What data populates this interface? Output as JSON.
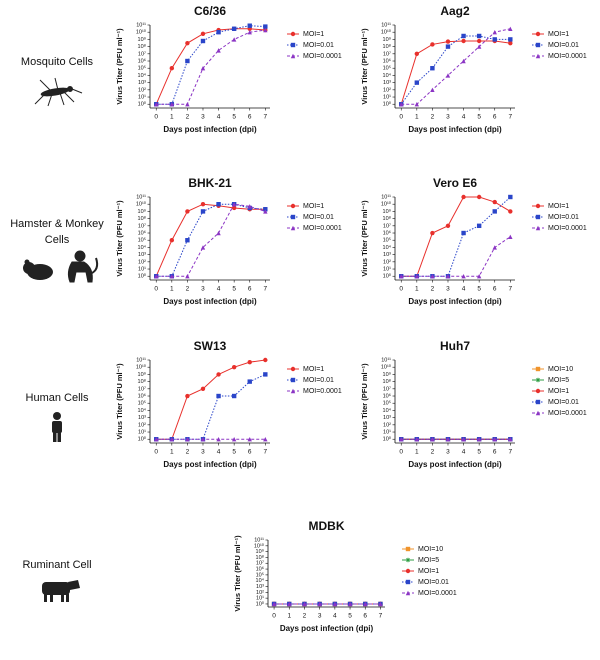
{
  "row_labels": [
    "Mosquito Cells",
    "Hamster & Monkey Cells",
    "Human Cells",
    "Ruminant Cell"
  ],
  "chart_data": [
    {
      "type": "line",
      "title": "C6/36",
      "xlabel": "Days post infection (dpi)",
      "ylabel": "Virus Titer (PFU ml⁻¹)",
      "log_scale": "y",
      "grid": false,
      "x": [
        0,
        1,
        2,
        3,
        4,
        5,
        6,
        7
      ],
      "xlim": [
        -0.4,
        7.3
      ],
      "xticks": [
        0,
        1,
        2,
        3,
        4,
        5,
        6,
        7
      ],
      "ylim": [
        0.3,
        100000000000.0
      ],
      "yticks": [
        {
          "value": 1,
          "label": "10⁰"
        },
        {
          "value": 10,
          "label": "10¹"
        },
        {
          "value": 100,
          "label": "10²"
        },
        {
          "value": 1000,
          "label": "10³"
        },
        {
          "value": 10000.0,
          "label": "10⁴"
        },
        {
          "value": 100000.0,
          "label": "10⁵"
        },
        {
          "value": 1000000.0,
          "label": "10⁶"
        },
        {
          "value": 10000000.0,
          "label": "10⁷"
        },
        {
          "value": 100000000.0,
          "label": "10⁸"
        },
        {
          "value": 1000000000.0,
          "label": "10⁹"
        },
        {
          "value": 10000000000.0,
          "label": "10¹⁰"
        },
        {
          "value": 100000000000.0,
          "label": "10¹¹"
        }
      ],
      "series": [
        {
          "name": "MOI=1",
          "color": "#e8302c",
          "marker": "circle",
          "dash": "solid",
          "values": [
            1,
            100000.0,
            300000000.0,
            6000000000.0,
            20000000000.0,
            30000000000.0,
            30000000000.0,
            20000000000.0
          ]
        },
        {
          "name": "MOI=0.01",
          "color": "#2a45c9",
          "marker": "square",
          "dash": "dotted",
          "values": [
            1,
            1,
            1000000.0,
            600000000.0,
            10000000000.0,
            30000000000.0,
            80000000000.0,
            60000000000.0
          ]
        },
        {
          "name": "MOI=0.0001",
          "color": "#8b34c4",
          "marker": "triangle",
          "dash": "dashed",
          "values": [
            1,
            1,
            1,
            100000.0,
            30000000.0,
            1000000000.0,
            10000000000.0,
            20000000000.0
          ]
        }
      ]
    },
    {
      "type": "line",
      "title": "Aag2",
      "xlabel": "Days post infection (dpi)",
      "ylabel": "Virus Titer (PFU ml⁻¹)",
      "log_scale": "y",
      "grid": false,
      "x": [
        0,
        1,
        2,
        3,
        4,
        5,
        6,
        7
      ],
      "xlim": [
        -0.4,
        7.3
      ],
      "xticks": [
        0,
        1,
        2,
        3,
        4,
        5,
        6,
        7
      ],
      "ylim": [
        0.3,
        100000000000.0
      ],
      "yticks": [
        {
          "value": 1,
          "label": "10⁰"
        },
        {
          "value": 10,
          "label": "10¹"
        },
        {
          "value": 100,
          "label": "10²"
        },
        {
          "value": 1000,
          "label": "10³"
        },
        {
          "value": 10000.0,
          "label": "10⁴"
        },
        {
          "value": 100000.0,
          "label": "10⁵"
        },
        {
          "value": 1000000.0,
          "label": "10⁶"
        },
        {
          "value": 10000000.0,
          "label": "10⁷"
        },
        {
          "value": 100000000.0,
          "label": "10⁸"
        },
        {
          "value": 1000000000.0,
          "label": "10⁹"
        },
        {
          "value": 10000000000.0,
          "label": "10¹⁰"
        },
        {
          "value": 100000000000.0,
          "label": "10¹¹"
        }
      ],
      "series": [
        {
          "name": "MOI=1",
          "color": "#e8302c",
          "marker": "circle",
          "dash": "solid",
          "values": [
            1,
            10000000.0,
            200000000.0,
            500000000.0,
            600000000.0,
            600000000.0,
            600000000.0,
            300000000.0
          ]
        },
        {
          "name": "MOI=0.01",
          "color": "#2a45c9",
          "marker": "square",
          "dash": "dotted",
          "values": [
            1,
            1000,
            100000.0,
            100000000.0,
            3000000000.0,
            3000000000.0,
            1000000000.0,
            1000000000.0
          ]
        },
        {
          "name": "MOI=0.0001",
          "color": "#8b34c4",
          "marker": "triangle",
          "dash": "dashed",
          "values": [
            1,
            1,
            100,
            10000.0,
            1000000.0,
            100000000.0,
            10000000000.0,
            30000000000.0
          ]
        }
      ]
    },
    {
      "type": "line",
      "title": "BHK-21",
      "xlabel": "Days post infection (dpi)",
      "ylabel": "Virus Titer (PFU ml⁻¹)",
      "log_scale": "y",
      "grid": false,
      "x": [
        0,
        1,
        2,
        3,
        4,
        5,
        6,
        7
      ],
      "xlim": [
        -0.4,
        7.3
      ],
      "xticks": [
        0,
        1,
        2,
        3,
        4,
        5,
        6,
        7
      ],
      "ylim": [
        0.3,
        100000000000.0
      ],
      "yticks": [
        {
          "value": 1,
          "label": "10⁰"
        },
        {
          "value": 10,
          "label": "10¹"
        },
        {
          "value": 100,
          "label": "10²"
        },
        {
          "value": 1000,
          "label": "10³"
        },
        {
          "value": 10000.0,
          "label": "10⁴"
        },
        {
          "value": 100000.0,
          "label": "10⁵"
        },
        {
          "value": 1000000.0,
          "label": "10⁶"
        },
        {
          "value": 10000000.0,
          "label": "10⁷"
        },
        {
          "value": 100000000.0,
          "label": "10⁸"
        },
        {
          "value": 1000000000.0,
          "label": "10⁹"
        },
        {
          "value": 10000000000.0,
          "label": "10¹⁰"
        },
        {
          "value": 100000000000.0,
          "label": "10¹¹"
        }
      ],
      "series": [
        {
          "name": "MOI=1",
          "color": "#e8302c",
          "marker": "circle",
          "dash": "solid",
          "values": [
            1,
            100000.0,
            1000000000.0,
            10000000000.0,
            6000000000.0,
            3000000000.0,
            2000000000.0,
            2000000000.0
          ]
        },
        {
          "name": "MOI=0.01",
          "color": "#2a45c9",
          "marker": "square",
          "dash": "dotted",
          "values": [
            1,
            1,
            100000.0,
            1000000000.0,
            10000000000.0,
            10000000000.0,
            3000000000.0,
            2000000000.0
          ]
        },
        {
          "name": "MOI=0.0001",
          "color": "#8b34c4",
          "marker": "triangle",
          "dash": "dashed",
          "values": [
            1,
            1,
            1,
            10000.0,
            1000000.0,
            10000000000.0,
            5000000000.0,
            1000000000.0
          ]
        }
      ]
    },
    {
      "type": "line",
      "title": "Vero E6",
      "xlabel": "Days post infection (dpi)",
      "ylabel": "Virus Titer (PFU ml⁻¹)",
      "log_scale": "y",
      "grid": false,
      "x": [
        0,
        1,
        2,
        3,
        4,
        5,
        6,
        7
      ],
      "xlim": [
        -0.4,
        7.3
      ],
      "xticks": [
        0,
        1,
        2,
        3,
        4,
        5,
        6,
        7
      ],
      "ylim": [
        0.3,
        100000000000.0
      ],
      "yticks": [
        {
          "value": 1,
          "label": "10⁰"
        },
        {
          "value": 10,
          "label": "10¹"
        },
        {
          "value": 100,
          "label": "10²"
        },
        {
          "value": 1000,
          "label": "10³"
        },
        {
          "value": 10000.0,
          "label": "10⁴"
        },
        {
          "value": 100000.0,
          "label": "10⁵"
        },
        {
          "value": 1000000.0,
          "label": "10⁶"
        },
        {
          "value": 10000000.0,
          "label": "10⁷"
        },
        {
          "value": 100000000.0,
          "label": "10⁸"
        },
        {
          "value": 1000000000.0,
          "label": "10⁹"
        },
        {
          "value": 10000000000.0,
          "label": "10¹⁰"
        },
        {
          "value": 100000000000.0,
          "label": "10¹¹"
        }
      ],
      "series": [
        {
          "name": "MOI=1",
          "color": "#e8302c",
          "marker": "circle",
          "dash": "solid",
          "values": [
            1,
            1,
            1000000.0,
            10000000.0,
            100000000000.0,
            100000000000.0,
            20000000000.0,
            1000000000.0
          ]
        },
        {
          "name": "MOI=0.01",
          "color": "#2a45c9",
          "marker": "square",
          "dash": "dotted",
          "values": [
            1,
            1,
            1,
            1,
            1000000.0,
            10000000.0,
            1000000000.0,
            100000000000.0
          ]
        },
        {
          "name": "MOI=0.0001",
          "color": "#8b34c4",
          "marker": "triangle",
          "dash": "dashed",
          "values": [
            1,
            1,
            1,
            1,
            1,
            1,
            10000.0,
            300000.0
          ]
        }
      ]
    },
    {
      "type": "line",
      "title": "SW13",
      "xlabel": "Days post infection (dpi)",
      "ylabel": "Virus Titer (PFU ml⁻¹)",
      "log_scale": "y",
      "grid": false,
      "x": [
        0,
        1,
        2,
        3,
        4,
        5,
        6,
        7
      ],
      "xlim": [
        -0.4,
        7.3
      ],
      "xticks": [
        0,
        1,
        2,
        3,
        4,
        5,
        6,
        7
      ],
      "ylim": [
        0.3,
        100000000000.0
      ],
      "yticks": [
        {
          "value": 1,
          "label": "10⁰"
        },
        {
          "value": 10,
          "label": "10¹"
        },
        {
          "value": 100,
          "label": "10²"
        },
        {
          "value": 1000,
          "label": "10³"
        },
        {
          "value": 10000.0,
          "label": "10⁴"
        },
        {
          "value": 100000.0,
          "label": "10⁵"
        },
        {
          "value": 1000000.0,
          "label": "10⁶"
        },
        {
          "value": 10000000.0,
          "label": "10⁷"
        },
        {
          "value": 100000000.0,
          "label": "10⁸"
        },
        {
          "value": 1000000000.0,
          "label": "10⁹"
        },
        {
          "value": 10000000000.0,
          "label": "10¹⁰"
        },
        {
          "value": 100000000000.0,
          "label": "10¹¹"
        }
      ],
      "series": [
        {
          "name": "MOI=1",
          "color": "#e8302c",
          "marker": "circle",
          "dash": "solid",
          "values": [
            1,
            1,
            1000000.0,
            10000000.0,
            1000000000.0,
            10000000000.0,
            50000000000.0,
            100000000000.0
          ]
        },
        {
          "name": "MOI=0.01",
          "color": "#2a45c9",
          "marker": "square",
          "dash": "dotted",
          "values": [
            1,
            1,
            1,
            1,
            1000000.0,
            1000000.0,
            100000000.0,
            1000000000.0
          ]
        },
        {
          "name": "MOI=0.0001",
          "color": "#8b34c4",
          "marker": "triangle",
          "dash": "dashed",
          "values": [
            1,
            1,
            1,
            1,
            1,
            1,
            1,
            1
          ]
        }
      ]
    },
    {
      "type": "line",
      "title": "Huh7",
      "xlabel": "Days post infection (dpi)",
      "ylabel": "Virus Titer (PFU ml⁻¹)",
      "log_scale": "y",
      "grid": false,
      "x": [
        0,
        1,
        2,
        3,
        4,
        5,
        6,
        7
      ],
      "xlim": [
        -0.4,
        7.3
      ],
      "xticks": [
        0,
        1,
        2,
        3,
        4,
        5,
        6,
        7
      ],
      "ylim": [
        0.3,
        100000000000.0
      ],
      "yticks": [
        {
          "value": 1,
          "label": "10⁰"
        },
        {
          "value": 10,
          "label": "10¹"
        },
        {
          "value": 100,
          "label": "10²"
        },
        {
          "value": 1000,
          "label": "10³"
        },
        {
          "value": 10000.0,
          "label": "10⁴"
        },
        {
          "value": 100000.0,
          "label": "10⁵"
        },
        {
          "value": 1000000.0,
          "label": "10⁶"
        },
        {
          "value": 10000000.0,
          "label": "10⁷"
        },
        {
          "value": 100000000.0,
          "label": "10⁸"
        },
        {
          "value": 1000000000.0,
          "label": "10⁹"
        },
        {
          "value": 10000000000.0,
          "label": "10¹⁰"
        },
        {
          "value": 100000000000.0,
          "label": "10¹¹"
        }
      ],
      "series": [
        {
          "name": "MOI=10",
          "color": "#f0932b",
          "marker": "square",
          "dash": "solid",
          "values": [
            1,
            1,
            1,
            1,
            1,
            1,
            1,
            1
          ]
        },
        {
          "name": "MOI=5",
          "color": "#2f9e44",
          "marker": "star",
          "dash": "solid",
          "values": [
            1,
            1,
            1,
            1,
            1,
            1,
            1,
            1
          ]
        },
        {
          "name": "MOI=1",
          "color": "#e8302c",
          "marker": "circle",
          "dash": "solid",
          "values": [
            1,
            1,
            1,
            1,
            1,
            1,
            1,
            1
          ]
        },
        {
          "name": "MOI=0.01",
          "color": "#2a45c9",
          "marker": "square",
          "dash": "dotted",
          "values": [
            1,
            1,
            1,
            1,
            1,
            1,
            1,
            1
          ]
        },
        {
          "name": "MOI=0.0001",
          "color": "#8b34c4",
          "marker": "triangle",
          "dash": "dashed",
          "values": [
            1,
            1,
            1,
            1,
            1,
            1,
            1,
            1
          ]
        }
      ]
    },
    {
      "type": "line",
      "title": "MDBK",
      "xlabel": "Days post infection (dpi)",
      "ylabel": "Virus Titer (PFU ml⁻¹)",
      "log_scale": "y",
      "grid": false,
      "x": [
        0,
        1,
        2,
        3,
        4,
        5,
        6,
        7
      ],
      "xlim": [
        -0.4,
        7.3
      ],
      "xticks": [
        0,
        1,
        2,
        3,
        4,
        5,
        6,
        7
      ],
      "ylim": [
        0.3,
        100000000000.0
      ],
      "yticks": [
        {
          "value": 1,
          "label": "10⁰"
        },
        {
          "value": 10,
          "label": "10¹"
        },
        {
          "value": 100,
          "label": "10²"
        },
        {
          "value": 1000,
          "label": "10³"
        },
        {
          "value": 10000.0,
          "label": "10⁴"
        },
        {
          "value": 100000.0,
          "label": "10⁵"
        },
        {
          "value": 1000000.0,
          "label": "10⁶"
        },
        {
          "value": 10000000.0,
          "label": "10⁷"
        },
        {
          "value": 100000000.0,
          "label": "10⁸"
        },
        {
          "value": 1000000000.0,
          "label": "10⁹"
        },
        {
          "value": 10000000000.0,
          "label": "10¹⁰"
        },
        {
          "value": 100000000000.0,
          "label": "10¹¹"
        }
      ],
      "series": [
        {
          "name": "MOI=10",
          "color": "#f0932b",
          "marker": "square",
          "dash": "solid",
          "values": [
            1,
            1,
            1,
            1,
            1,
            1,
            1,
            1
          ]
        },
        {
          "name": "MOI=5",
          "color": "#2f9e44",
          "marker": "star",
          "dash": "solid",
          "values": [
            1,
            1,
            1,
            1,
            1,
            1,
            1,
            1
          ]
        },
        {
          "name": "MOI=1",
          "color": "#e8302c",
          "marker": "circle",
          "dash": "solid",
          "values": [
            1,
            1,
            1,
            1,
            1,
            1,
            1,
            1
          ]
        },
        {
          "name": "MOI=0.01",
          "color": "#2a45c9",
          "marker": "square",
          "dash": "dotted",
          "values": [
            1,
            1,
            1,
            1,
            1,
            1,
            1,
            1
          ]
        },
        {
          "name": "MOI=0.0001",
          "color": "#8b34c4",
          "marker": "triangle",
          "dash": "dashed",
          "values": [
            1,
            1,
            1,
            1,
            1,
            1,
            1,
            1
          ]
        }
      ]
    }
  ]
}
